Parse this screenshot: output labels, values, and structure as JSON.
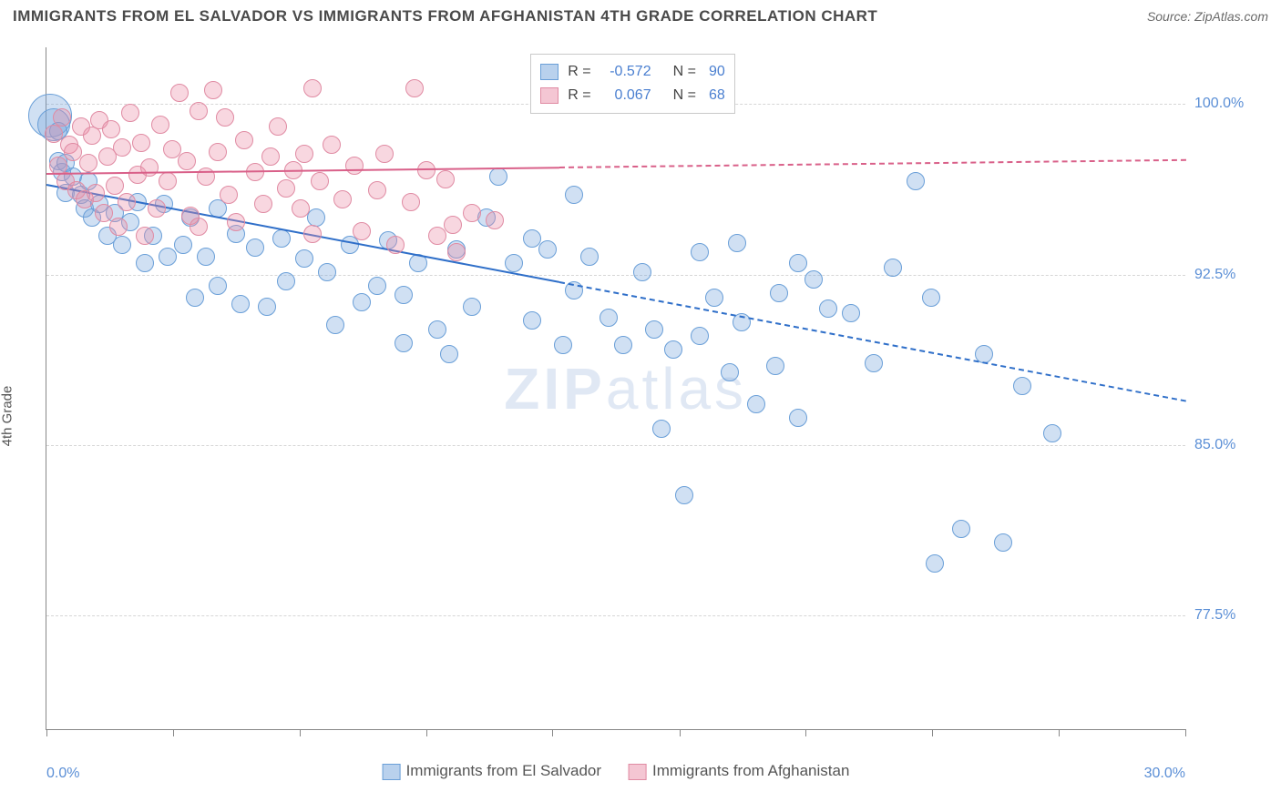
{
  "title": "IMMIGRANTS FROM EL SALVADOR VS IMMIGRANTS FROM AFGHANISTAN 4TH GRADE CORRELATION CHART",
  "source": "Source: ZipAtlas.com",
  "ylabel": "4th Grade",
  "watermark_a": "ZIP",
  "watermark_b": "atlas",
  "chart": {
    "type": "scatter",
    "background_color": "#ffffff",
    "grid_color": "#d6d6d6",
    "axis_color": "#888888",
    "xlim": [
      0,
      30
    ],
    "ylim": [
      72.5,
      102.5
    ],
    "x_ticks_minor": [
      0,
      3.33,
      6.67,
      10,
      13.33,
      16.67,
      20,
      23.33,
      26.67,
      30
    ],
    "x_tick_labels": [
      {
        "x": 0,
        "label": "0.0%"
      },
      {
        "x": 30,
        "label": "30.0%"
      }
    ],
    "y_tick_labels": [
      {
        "y": 100,
        "label": "100.0%"
      },
      {
        "y": 92.5,
        "label": "92.5%"
      },
      {
        "y": 85,
        "label": "85.0%"
      },
      {
        "y": 77.5,
        "label": "77.5%"
      }
    ],
    "series": [
      {
        "name": "Immigrants from El Salvador",
        "color_fill": "rgba(120, 165, 220, 0.35)",
        "color_stroke": "#6a9fd8",
        "trend_color": "#2f6fc9",
        "trend_solid_x": [
          0,
          13.5
        ],
        "trend_y": [
          96.5,
          87.0
        ],
        "trend_dash_to_x": 30,
        "legend_swatch_fill": "#b9d1ed",
        "legend_swatch_border": "#6a9fd8",
        "r": "-0.572",
        "n": "90",
        "marker_r": 10,
        "points": [
          [
            0.1,
            99.5,
            24
          ],
          [
            0.2,
            99.1,
            18
          ],
          [
            0.3,
            98.8
          ],
          [
            0.3,
            97.5
          ],
          [
            0.4,
            97.0
          ],
          [
            0.5,
            97.4
          ],
          [
            0.5,
            96.1
          ],
          [
            0.7,
            96.8
          ],
          [
            0.9,
            96.0
          ],
          [
            1.0,
            95.4
          ],
          [
            1.1,
            96.6
          ],
          [
            1.2,
            95.0
          ],
          [
            1.4,
            95.6
          ],
          [
            1.6,
            94.2
          ],
          [
            1.8,
            95.2
          ],
          [
            2.0,
            93.8
          ],
          [
            2.2,
            94.8
          ],
          [
            2.4,
            95.7
          ],
          [
            2.6,
            93.0
          ],
          [
            2.8,
            94.2
          ],
          [
            3.1,
            95.6
          ],
          [
            3.2,
            93.3
          ],
          [
            3.6,
            93.8
          ],
          [
            3.8,
            95.0
          ],
          [
            3.9,
            91.5
          ],
          [
            4.2,
            93.3
          ],
          [
            4.5,
            95.4
          ],
          [
            4.5,
            92.0
          ],
          [
            5.0,
            94.3
          ],
          [
            5.1,
            91.2
          ],
          [
            5.5,
            93.7
          ],
          [
            5.8,
            91.1
          ],
          [
            6.2,
            94.1
          ],
          [
            6.3,
            92.2
          ],
          [
            6.8,
            93.2
          ],
          [
            7.1,
            95.0
          ],
          [
            7.4,
            92.6
          ],
          [
            7.6,
            90.3
          ],
          [
            8.0,
            93.8
          ],
          [
            8.3,
            91.3
          ],
          [
            8.7,
            92.0
          ],
          [
            9.0,
            94.0
          ],
          [
            9.4,
            89.5
          ],
          [
            9.4,
            91.6
          ],
          [
            9.8,
            93.0
          ],
          [
            10.3,
            90.1
          ],
          [
            10.6,
            89.0
          ],
          [
            10.8,
            93.6
          ],
          [
            11.2,
            91.1
          ],
          [
            11.6,
            95.0
          ],
          [
            11.9,
            96.8
          ],
          [
            12.3,
            93.0
          ],
          [
            12.8,
            90.5
          ],
          [
            12.8,
            94.1
          ],
          [
            13.2,
            93.6
          ],
          [
            13.6,
            89.4
          ],
          [
            13.9,
            91.8
          ],
          [
            13.9,
            96.0
          ],
          [
            14.3,
            93.3
          ],
          [
            14.8,
            90.6
          ],
          [
            15.2,
            89.4
          ],
          [
            15.7,
            92.6
          ],
          [
            16.0,
            90.1
          ],
          [
            16.2,
            85.7
          ],
          [
            16.5,
            89.2
          ],
          [
            16.8,
            82.8
          ],
          [
            17.2,
            93.5
          ],
          [
            17.2,
            89.8
          ],
          [
            17.6,
            91.5
          ],
          [
            18.0,
            88.2
          ],
          [
            18.2,
            93.9
          ],
          [
            18.3,
            90.4
          ],
          [
            18.7,
            86.8
          ],
          [
            19.2,
            88.5
          ],
          [
            19.3,
            91.7
          ],
          [
            19.8,
            93.0
          ],
          [
            19.8,
            86.2
          ],
          [
            20.2,
            92.3
          ],
          [
            20.6,
            91.0
          ],
          [
            21.2,
            90.8
          ],
          [
            21.8,
            88.6
          ],
          [
            22.3,
            92.8
          ],
          [
            22.9,
            96.6
          ],
          [
            23.3,
            91.5
          ],
          [
            23.4,
            79.8
          ],
          [
            24.1,
            81.3
          ],
          [
            24.7,
            89.0
          ],
          [
            25.2,
            80.7
          ],
          [
            25.7,
            87.6
          ],
          [
            26.5,
            85.5
          ]
        ]
      },
      {
        "name": "Immigrants from Afghanistan",
        "color_fill": "rgba(235, 140, 165, 0.35)",
        "color_stroke": "#e08ba3",
        "trend_color": "#d96089",
        "trend_solid_x": [
          0,
          13.5
        ],
        "trend_y": [
          97.0,
          97.6
        ],
        "trend_dash_to_x": 30,
        "legend_swatch_fill": "#f4c6d3",
        "legend_swatch_border": "#e08ba3",
        "r": "0.067",
        "n": "68",
        "marker_r": 10,
        "points": [
          [
            0.2,
            98.7
          ],
          [
            0.3,
            97.3
          ],
          [
            0.4,
            99.4
          ],
          [
            0.5,
            96.6
          ],
          [
            0.6,
            98.2
          ],
          [
            0.7,
            97.9
          ],
          [
            0.8,
            96.2
          ],
          [
            0.9,
            99.0
          ],
          [
            1.0,
            95.8
          ],
          [
            1.1,
            97.4
          ],
          [
            1.2,
            98.6
          ],
          [
            1.3,
            96.1
          ],
          [
            1.4,
            99.3
          ],
          [
            1.5,
            95.2
          ],
          [
            1.6,
            97.7
          ],
          [
            1.7,
            98.9
          ],
          [
            1.8,
            96.4
          ],
          [
            1.9,
            94.6
          ],
          [
            2.0,
            98.1
          ],
          [
            2.1,
            95.7
          ],
          [
            2.2,
            99.6
          ],
          [
            2.4,
            96.9
          ],
          [
            2.5,
            98.3
          ],
          [
            2.6,
            94.2
          ],
          [
            2.7,
            97.2
          ],
          [
            2.9,
            95.4
          ],
          [
            3.0,
            99.1
          ],
          [
            3.2,
            96.6
          ],
          [
            3.3,
            98.0
          ],
          [
            3.5,
            100.5
          ],
          [
            3.7,
            97.5
          ],
          [
            3.8,
            95.1
          ],
          [
            4.0,
            99.7
          ],
          [
            4.0,
            94.6
          ],
          [
            4.2,
            96.8
          ],
          [
            4.4,
            100.6
          ],
          [
            4.5,
            97.9
          ],
          [
            4.7,
            99.4
          ],
          [
            4.8,
            96.0
          ],
          [
            5.0,
            94.8
          ],
          [
            5.2,
            98.4
          ],
          [
            5.5,
            97.0
          ],
          [
            5.7,
            95.6
          ],
          [
            5.9,
            97.7
          ],
          [
            6.1,
            99.0
          ],
          [
            6.3,
            96.3
          ],
          [
            6.5,
            97.1
          ],
          [
            6.7,
            95.4
          ],
          [
            6.8,
            97.8
          ],
          [
            7.0,
            100.7
          ],
          [
            7.0,
            94.3
          ],
          [
            7.2,
            96.6
          ],
          [
            7.5,
            98.2
          ],
          [
            7.8,
            95.8
          ],
          [
            8.1,
            97.3
          ],
          [
            8.3,
            94.4
          ],
          [
            8.7,
            96.2
          ],
          [
            8.9,
            97.8
          ],
          [
            9.2,
            93.8
          ],
          [
            9.6,
            95.7
          ],
          [
            9.7,
            100.7
          ],
          [
            10.0,
            97.1
          ],
          [
            10.3,
            94.2
          ],
          [
            10.5,
            96.7
          ],
          [
            10.7,
            94.7
          ],
          [
            10.8,
            93.5
          ],
          [
            11.2,
            95.2
          ],
          [
            11.8,
            94.9
          ]
        ]
      }
    ]
  }
}
